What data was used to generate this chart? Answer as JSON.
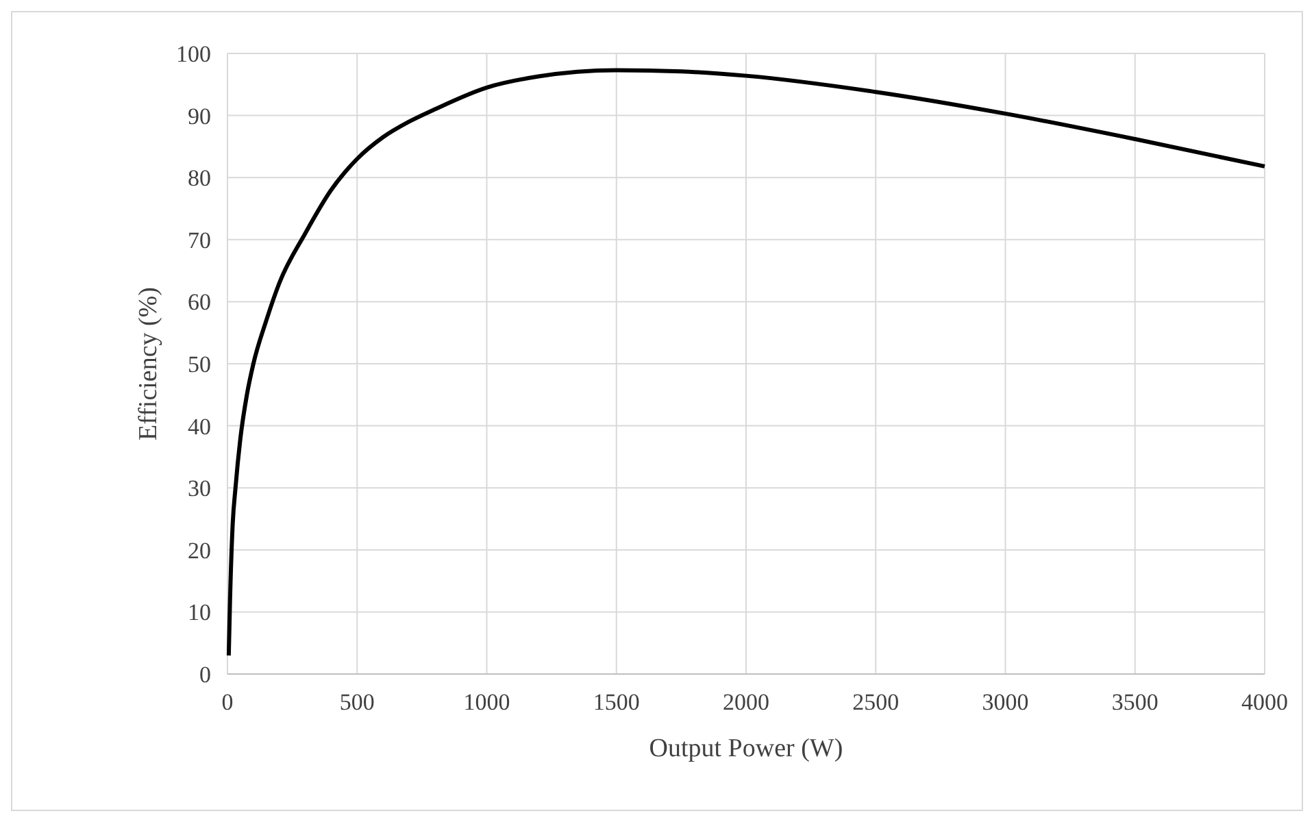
{
  "chart_data": {
    "type": "line",
    "xlabel": "Output Power (W)",
    "ylabel": "Efficiency (%)",
    "x": [
      5,
      10,
      20,
      31,
      50,
      75,
      100,
      150,
      200,
      300,
      400,
      500,
      600,
      700,
      800,
      1000,
      1200,
      1500,
      1750,
      2000,
      2500,
      3000,
      3500,
      4000
    ],
    "series": [
      {
        "color": "#000000",
        "values": [
          3,
          12,
          24,
          30,
          38,
          45,
          50,
          57,
          63,
          71,
          78,
          83,
          86.5,
          89,
          91,
          94.5,
          96.3,
          97.3,
          97.1,
          96.4,
          93.8,
          90.3,
          86.2,
          81.8
        ]
      }
    ],
    "xlim": [
      0,
      4000
    ],
    "xticks": [
      0,
      500,
      1000,
      1500,
      2000,
      2500,
      3000,
      3500,
      4000
    ],
    "ylim": [
      0,
      100
    ],
    "yticks": [
      0,
      10,
      20,
      30,
      40,
      50,
      60,
      70,
      80,
      90,
      100
    ],
    "grid": true,
    "marker": "none",
    "line_style": "solid"
  }
}
